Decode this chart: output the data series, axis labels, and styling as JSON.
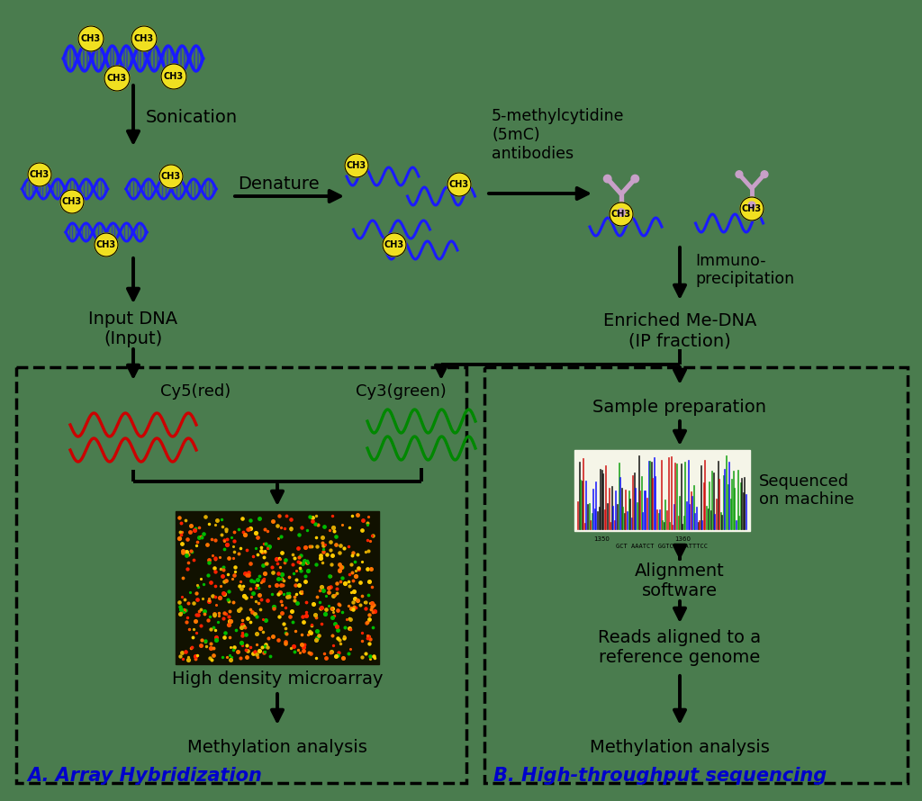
{
  "bg_color": "#4a7c4e",
  "text_color": "#000000",
  "arrow_color": "#000000",
  "dna_blue": "#1a1aff",
  "dna_red": "#cc0000",
  "dna_green": "#008800",
  "ch3_yellow": "#f0e020",
  "antibody_pink": "#c8a0c8",
  "label_blue": "#0000cc",
  "texts": {
    "sonication": "Sonication",
    "denature": "Denature",
    "antibody": "5-methylcytidine\n(5mC)\nantibodies",
    "immuno": "Immuno-\nprecipitation",
    "input_dna": "Input DNA\n(Input)",
    "enriched": "Enriched Me-DNA\n(IP fraction)",
    "cy5": "Cy5(red)",
    "cy3": "Cy3(green)",
    "microarray": "High density microarray",
    "methylation_a": "Methylation analysis",
    "methylation_b": "Methylation analysis",
    "sample_prep": "Sample preparation",
    "sequenced": "Sequenced\non machine",
    "alignment": "Alignment\nsoftware",
    "reads": "Reads aligned to a\nreference genome",
    "label_a": "A. Array Hybridization",
    "label_b": "B. High-throughput sequencing"
  }
}
